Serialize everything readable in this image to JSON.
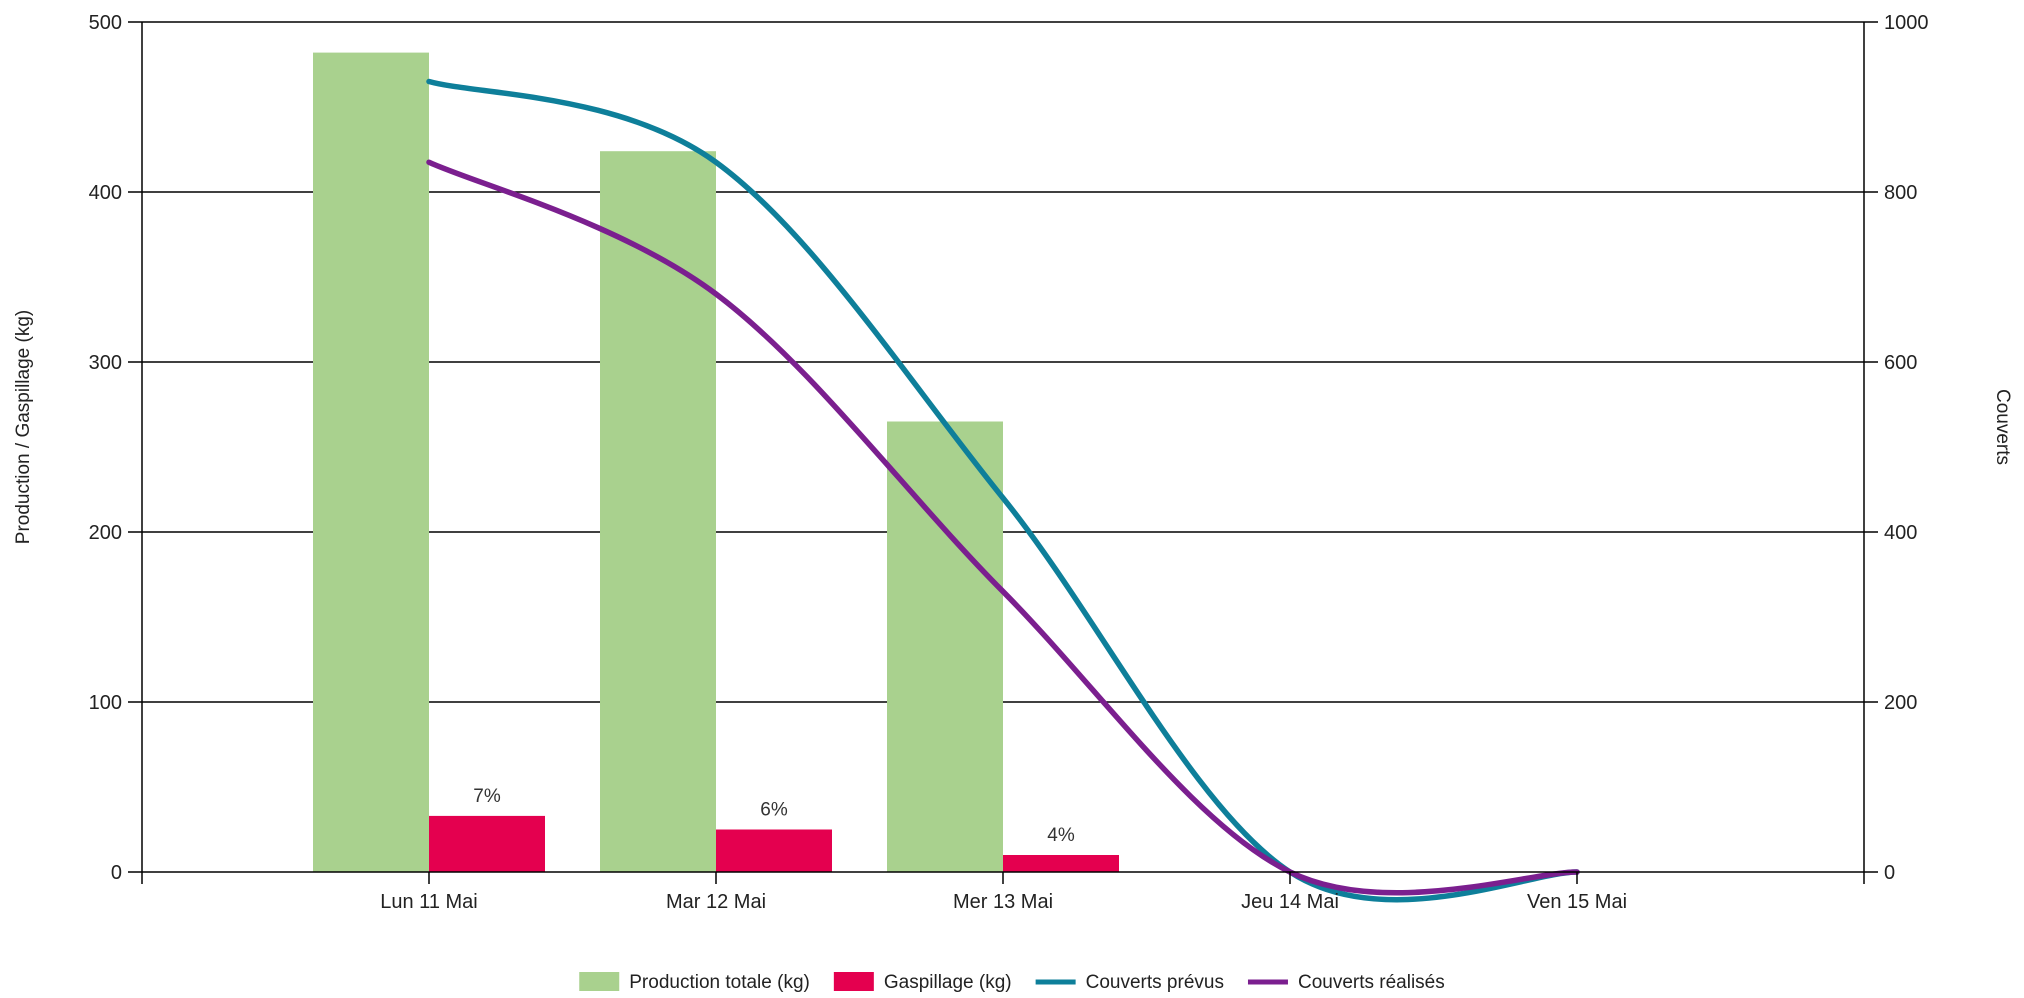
{
  "chart_data": {
    "type": "bar",
    "categories": [
      "Lun 11 Mai",
      "Mar 12 Mai",
      "Mer 13 Mai",
      "Jeu 14 Mai",
      "Ven 15 Mai"
    ],
    "y_left": {
      "label": "Production / Gaspillage (kg)",
      "lim": [
        0,
        500
      ],
      "ticks": [
        0,
        100,
        200,
        300,
        400,
        500
      ]
    },
    "y_right": {
      "label": "Couverts",
      "lim": [
        0,
        1000
      ],
      "ticks": [
        0,
        200,
        400,
        600,
        800,
        1000
      ]
    },
    "grid": true,
    "legend_position": "bottom",
    "series": [
      {
        "name": "Production totale (kg)",
        "kind": "bar",
        "axis": "left",
        "color": "#a9d18e",
        "values": [
          482,
          424,
          265,
          0,
          0
        ]
      },
      {
        "name": "Gaspillage (kg)",
        "kind": "bar",
        "axis": "left",
        "color": "#e4004f",
        "values": [
          33,
          25,
          10,
          0,
          0
        ],
        "labels": [
          "7%",
          "6%",
          "4%",
          "",
          ""
        ]
      },
      {
        "name": "Couverts prévus",
        "kind": "line",
        "axis": "right",
        "color": "#0e7f9a",
        "values": [
          930,
          835,
          440,
          0,
          0
        ]
      },
      {
        "name": "Couverts réalisés",
        "kind": "line",
        "axis": "right",
        "color": "#7b1f8f",
        "values": [
          835,
          680,
          330,
          0,
          0
        ]
      }
    ]
  }
}
